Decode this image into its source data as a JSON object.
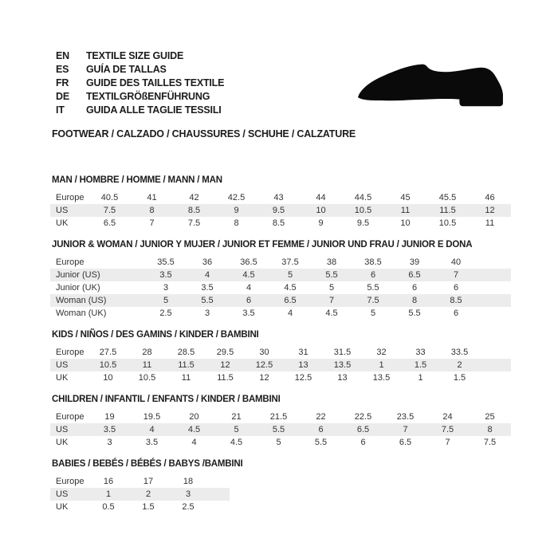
{
  "header": {
    "languages": [
      {
        "code": "EN",
        "label": "TEXTILE SIZE GUIDE"
      },
      {
        "code": "ES",
        "label": "GUÍA DE TALLAS"
      },
      {
        "code": "FR",
        "label": "GUIDE DES TAILLES TEXTILE"
      },
      {
        "code": "DE",
        "label": "TEXTILGRÖßENFÜHRUNG"
      },
      {
        "code": "IT",
        "label": "GUIDA ALLE TAGLIE TESSILI"
      }
    ],
    "category_line": "FOOTWEAR / CALZADO / CHAUSSURES / SCHUHE / CALZATURE",
    "shoe_icon": "dress-shoe-silhouette"
  },
  "colors": {
    "header_row": "#c7c7c7",
    "alt_row": "#ececec",
    "row_white": "#ffffff",
    "text": "#333333",
    "title_text": "#1c1c1c",
    "shoe": "#0a0a0a"
  },
  "tables": [
    {
      "id": "man",
      "title": "MAN / HOMBRE / HOMME / MANN / MAN",
      "rows": [
        {
          "label": "Europe",
          "values": [
            "40.5",
            "41",
            "42",
            "42.5",
            "43",
            "44",
            "44.5",
            "45",
            "45.5",
            "46"
          ]
        },
        {
          "label": "US",
          "values": [
            "7.5",
            "8",
            "8.5",
            "9",
            "9.5",
            "10",
            "10.5",
            "11",
            "11.5",
            "12"
          ]
        },
        {
          "label": "UK",
          "values": [
            "6.5",
            "7",
            "7.5",
            "8",
            "8.5",
            "9",
            "9.5",
            "10",
            "10.5",
            "11"
          ]
        }
      ]
    },
    {
      "id": "junior-woman",
      "title": "JUNIOR & WOMAN / JUNIOR Y MUJER / JUNIOR ET FEMME / JUNIOR UND FRAU / JUNIOR E DONA",
      "rows": [
        {
          "label": "Europe",
          "values": [
            "35.5",
            "36",
            "36.5",
            "37.5",
            "38",
            "38.5",
            "39",
            "40"
          ]
        },
        {
          "label": "Junior (US)",
          "values": [
            "3.5",
            "4",
            "4.5",
            "5",
            "5.5",
            "6",
            "6.5",
            "7"
          ]
        },
        {
          "label": "Junior (UK)",
          "values": [
            "3",
            "3.5",
            "4",
            "4.5",
            "5",
            "5.5",
            "6",
            "6"
          ]
        },
        {
          "label": "Woman (US)",
          "values": [
            "5",
            "5.5",
            "6",
            "6.5",
            "7",
            "7.5",
            "8",
            "8.5"
          ]
        },
        {
          "label": "Woman (UK)",
          "values": [
            "2.5",
            "3",
            "3.5",
            "4",
            "4.5",
            "5",
            "5.5",
            "6"
          ]
        }
      ]
    },
    {
      "id": "kids",
      "title": "KIDS / NIÑOS / DES GAMINS / KINDER / BAMBINI",
      "rows": [
        {
          "label": "Europe",
          "values": [
            "27.5",
            "28",
            "28.5",
            "29.5",
            "30",
            "31",
            "31.5",
            "32",
            "33",
            "33.5"
          ]
        },
        {
          "label": "US",
          "values": [
            "10.5",
            "11",
            "11.5",
            "12",
            "12.5",
            "13",
            "13.5",
            "1",
            "1.5",
            "2"
          ]
        },
        {
          "label": "UK",
          "values": [
            "10",
            "10.5",
            "11",
            "11.5",
            "12",
            "12.5",
            "13",
            "13.5",
            "1",
            "1.5"
          ]
        }
      ]
    },
    {
      "id": "children",
      "title": "CHILDREN / INFANTIL / ENFANTS / KINDER / BAMBINI",
      "rows": [
        {
          "label": "Europe",
          "values": [
            "19",
            "19.5",
            "20",
            "21",
            "21.5",
            "22",
            "22.5",
            "23.5",
            "24",
            "25"
          ]
        },
        {
          "label": "US",
          "values": [
            "3.5",
            "4",
            "4.5",
            "5",
            "5.5",
            "6",
            "6.5",
            "7",
            "7.5",
            "8"
          ]
        },
        {
          "label": "UK",
          "values": [
            "3",
            "3.5",
            "4",
            "4.5",
            "5",
            "5.5",
            "6",
            "6.5",
            "7",
            "7.5"
          ]
        }
      ]
    },
    {
      "id": "babies",
      "title": "BABIES  / BEBÉS / BÉBÉS / BABYS /BAMBINI",
      "rows": [
        {
          "label": "Europe",
          "values": [
            "16",
            "17",
            "18"
          ]
        },
        {
          "label": "US",
          "values": [
            "1",
            "2",
            "3"
          ]
        },
        {
          "label": "UK",
          "values": [
            "0.5",
            "1.5",
            "2.5"
          ]
        }
      ]
    }
  ]
}
